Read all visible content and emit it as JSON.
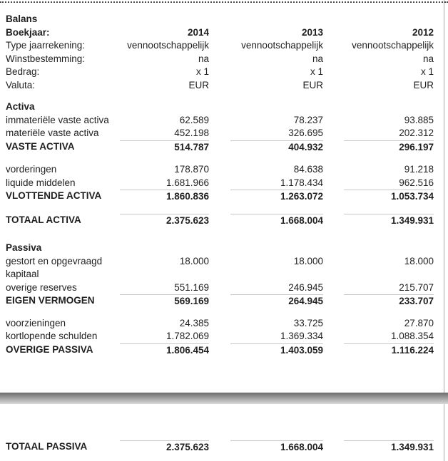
{
  "title": "Balans",
  "colors": {
    "text": "#1f1f1f",
    "rule_line": "#c8c8c8",
    "divider_gradient_top": "#6d6d6d",
    "divider_gradient_bottom": "#d8d8d8",
    "top_dotted_border": "#4a4a4a"
  },
  "info": {
    "rows": [
      {
        "label": "Boekjaar:",
        "v": [
          "2014",
          "2013",
          "2012"
        ]
      },
      {
        "label": "Type jaarrekening:",
        "v": [
          "vennootschappelijk",
          "vennootschappelijk",
          "vennootschappelijk"
        ]
      },
      {
        "label": "Winstbestemming:",
        "v": [
          "na",
          "na",
          "na"
        ]
      },
      {
        "label": "Bedrag:",
        "v": [
          "x 1",
          "x 1",
          "x 1"
        ]
      },
      {
        "label": "Valuta:",
        "v": [
          "EUR",
          "EUR",
          "EUR"
        ]
      }
    ]
  },
  "activa": {
    "title": "Activa",
    "vaste": {
      "rows": [
        {
          "label": "immateriële vaste activa",
          "v": [
            "62.589",
            "78.237",
            "93.885"
          ]
        },
        {
          "label": "materiële vaste activa",
          "v": [
            "452.198",
            "326.695",
            "202.312"
          ]
        }
      ],
      "total": {
        "label": "VASTE ACTIVA",
        "v": [
          "514.787",
          "404.932",
          "296.197"
        ]
      }
    },
    "vlottende": {
      "rows": [
        {
          "label": "vorderingen",
          "v": [
            "178.870",
            "84.638",
            "91.218"
          ]
        },
        {
          "label": "liquide middelen",
          "v": [
            "1.681.966",
            "1.178.434",
            "962.516"
          ]
        }
      ],
      "total": {
        "label": "VLOTTENDE ACTIVA",
        "v": [
          "1.860.836",
          "1.263.072",
          "1.053.734"
        ]
      }
    },
    "total": {
      "label": "TOTAAL ACTIVA",
      "v": [
        "2.375.623",
        "1.668.004",
        "1.349.931"
      ]
    }
  },
  "passiva": {
    "title": "Passiva",
    "eigen": {
      "rows": [
        {
          "label": "gestort en opgevraagd kapitaal",
          "v": [
            "18.000",
            "18.000",
            "18.000"
          ]
        },
        {
          "label": "overige reserves",
          "v": [
            "551.169",
            "246.945",
            "215.707"
          ]
        }
      ],
      "total": {
        "label": "EIGEN VERMOGEN",
        "v": [
          "569.169",
          "264.945",
          "233.707"
        ]
      }
    },
    "overige": {
      "rows": [
        {
          "label": "voorzieningen",
          "v": [
            "24.385",
            "33.725",
            "27.870"
          ]
        },
        {
          "label": "kortlopende schulden",
          "v": [
            "1.782.069",
            "1.369.334",
            "1.088.354"
          ]
        }
      ],
      "total": {
        "label": "OVERIGE PASSIVA",
        "v": [
          "1.806.454",
          "1.403.059",
          "1.116.224"
        ]
      }
    },
    "total": {
      "label": "TOTAAL PASSIVA",
      "v": [
        "2.375.623",
        "1.668.004",
        "1.349.931"
      ]
    }
  }
}
